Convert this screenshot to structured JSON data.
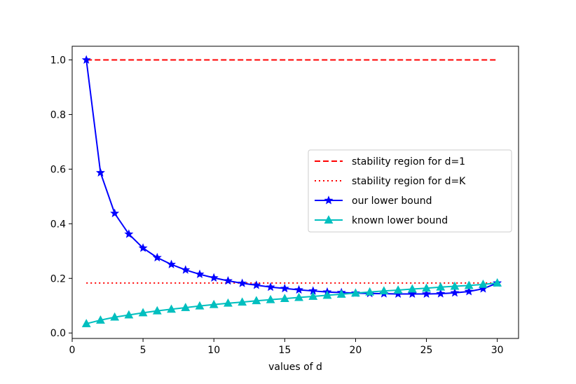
{
  "chart_data": {
    "type": "line",
    "title": "",
    "xlabel": "values of d",
    "ylabel": "",
    "xlim": [
      0,
      31.5
    ],
    "ylim": [
      -0.02,
      1.05
    ],
    "xticks": [
      0,
      5,
      10,
      15,
      20,
      25,
      30
    ],
    "yticks": [
      0.0,
      0.2,
      0.4,
      0.6,
      0.8,
      1.0
    ],
    "xtick_labels": [
      "0",
      "5",
      "10",
      "15",
      "20",
      "25",
      "30"
    ],
    "ytick_labels": [
      "0.0",
      "0.2",
      "0.4",
      "0.6",
      "0.8",
      "1.0"
    ],
    "grid": false,
    "legend_position": "center-right",
    "series": [
      {
        "name": "stability region for d=1",
        "style": "dashed",
        "marker": "none",
        "color": "#ff0000",
        "x": [
          1,
          30
        ],
        "values": [
          1.0,
          1.0
        ]
      },
      {
        "name": "stability region for d=K",
        "style": "dotted",
        "marker": "none",
        "color": "#ff0000",
        "x": [
          1,
          30
        ],
        "values": [
          0.183,
          0.183
        ]
      },
      {
        "name": "our lower bound",
        "style": "solid",
        "marker": "star",
        "color": "#0000ff",
        "x": [
          1,
          2,
          3,
          4,
          5,
          6,
          7,
          8,
          9,
          10,
          11,
          12,
          13,
          14,
          15,
          16,
          17,
          18,
          19,
          20,
          21,
          22,
          23,
          24,
          25,
          26,
          27,
          28,
          29,
          30
        ],
        "values": [
          1.0,
          0.587,
          0.438,
          0.362,
          0.311,
          0.276,
          0.251,
          0.231,
          0.215,
          0.202,
          0.191,
          0.182,
          0.175,
          0.168,
          0.163,
          0.158,
          0.154,
          0.15,
          0.148,
          0.146,
          0.145,
          0.144,
          0.143,
          0.143,
          0.143,
          0.144,
          0.147,
          0.152,
          0.162,
          0.183
        ]
      },
      {
        "name": "known lower bound",
        "style": "solid",
        "marker": "triangle",
        "color": "#00bfbf",
        "x": [
          1,
          2,
          3,
          4,
          5,
          6,
          7,
          8,
          9,
          10,
          11,
          12,
          13,
          14,
          15,
          16,
          17,
          18,
          19,
          20,
          21,
          22,
          23,
          24,
          25,
          26,
          27,
          28,
          29,
          30
        ],
        "values": [
          0.034,
          0.047,
          0.058,
          0.066,
          0.074,
          0.081,
          0.087,
          0.093,
          0.099,
          0.104,
          0.109,
          0.113,
          0.118,
          0.122,
          0.126,
          0.13,
          0.134,
          0.138,
          0.142,
          0.146,
          0.15,
          0.154,
          0.157,
          0.161,
          0.164,
          0.168,
          0.171,
          0.174,
          0.178,
          0.183
        ]
      }
    ]
  }
}
